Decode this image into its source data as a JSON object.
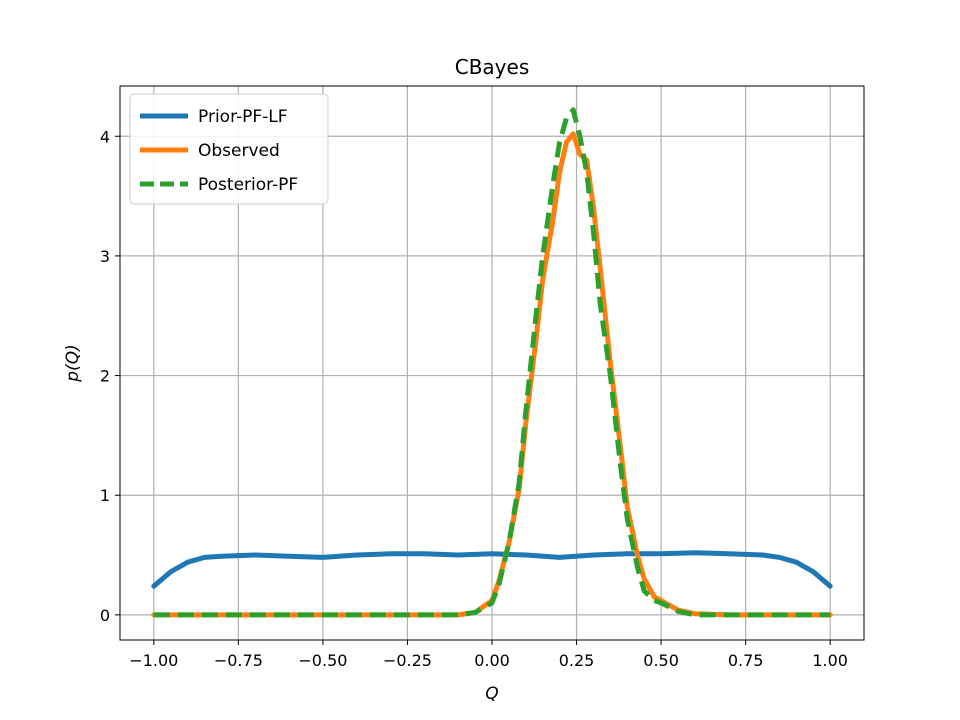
{
  "chart_data": {
    "type": "line",
    "title": "CBayes",
    "xlabel": "Q",
    "ylabel": "p(Q)",
    "xlim": [
      -1.1,
      1.1
    ],
    "ylim": [
      -0.21,
      4.42
    ],
    "grid": true,
    "legend_position": "top-left",
    "xticks": [
      -1.0,
      -0.75,
      -0.5,
      -0.25,
      0.0,
      0.25,
      0.5,
      0.75,
      1.0
    ],
    "xtick_labels": [
      "−1.00",
      "−0.75",
      "−0.50",
      "−0.25",
      "0.00",
      "0.25",
      "0.50",
      "0.75",
      "1.00"
    ],
    "yticks": [
      0,
      1,
      2,
      3,
      4
    ],
    "ytick_labels": [
      "0",
      "1",
      "2",
      "3",
      "4"
    ],
    "series": [
      {
        "name": "Prior-PF-LF",
        "color": "#1f77b4",
        "style": "solid",
        "x": [
          -1.0,
          -0.95,
          -0.9,
          -0.85,
          -0.8,
          -0.75,
          -0.7,
          -0.6,
          -0.5,
          -0.4,
          -0.3,
          -0.25,
          -0.2,
          -0.1,
          0.0,
          0.1,
          0.2,
          0.3,
          0.4,
          0.5,
          0.6,
          0.7,
          0.8,
          0.85,
          0.9,
          0.95,
          1.0
        ],
        "y": [
          0.24,
          0.36,
          0.44,
          0.48,
          0.49,
          0.495,
          0.5,
          0.49,
          0.48,
          0.5,
          0.51,
          0.51,
          0.51,
          0.5,
          0.51,
          0.5,
          0.48,
          0.5,
          0.51,
          0.51,
          0.52,
          0.51,
          0.5,
          0.48,
          0.44,
          0.36,
          0.24
        ]
      },
      {
        "name": "Observed",
        "color": "#ff7f0e",
        "style": "solid",
        "x": [
          -1.0,
          -0.5,
          -0.1,
          -0.05,
          0.0,
          0.02,
          0.05,
          0.08,
          0.1,
          0.13,
          0.15,
          0.18,
          0.2,
          0.22,
          0.24,
          0.26,
          0.28,
          0.3,
          0.32,
          0.35,
          0.38,
          0.4,
          0.43,
          0.45,
          0.48,
          0.5,
          0.55,
          0.6,
          0.7,
          1.0
        ],
        "y": [
          0.0,
          0.0,
          0.0,
          0.02,
          0.12,
          0.28,
          0.6,
          1.05,
          1.6,
          2.3,
          2.8,
          3.3,
          3.7,
          3.95,
          4.02,
          3.85,
          3.8,
          3.4,
          2.9,
          2.1,
          1.4,
          0.9,
          0.5,
          0.3,
          0.15,
          0.12,
          0.04,
          0.01,
          0.0,
          0.0
        ]
      },
      {
        "name": "Posterior-PF",
        "color": "#2ca02c",
        "style": "dashed",
        "x": [
          -1.0,
          -0.5,
          -0.1,
          -0.05,
          0.0,
          0.02,
          0.05,
          0.08,
          0.1,
          0.13,
          0.15,
          0.18,
          0.2,
          0.22,
          0.24,
          0.26,
          0.28,
          0.3,
          0.32,
          0.35,
          0.38,
          0.4,
          0.43,
          0.45,
          0.48,
          0.5,
          0.55,
          0.6,
          0.7,
          1.0
        ],
        "y": [
          0.0,
          0.0,
          0.0,
          0.02,
          0.1,
          0.25,
          0.6,
          1.1,
          1.7,
          2.5,
          3.0,
          3.6,
          3.95,
          4.15,
          4.22,
          4.0,
          3.7,
          3.2,
          2.6,
          2.0,
          1.25,
          0.8,
          0.4,
          0.2,
          0.12,
          0.1,
          0.03,
          0.0,
          0.0,
          0.0
        ]
      }
    ]
  }
}
